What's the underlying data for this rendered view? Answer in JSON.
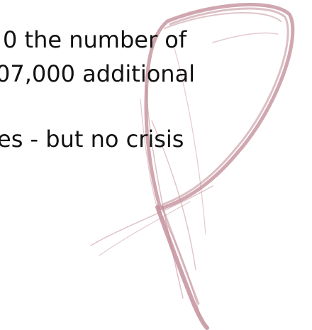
{
  "body": {
    "lines": [
      "0 the number of",
      "07,000 additional",
      "es - but no crisis"
    ]
  },
  "colors": {
    "text": "#111111",
    "watermark": "#c08a96"
  },
  "watermark": {
    "icon": "pen-stroke-logo-icon"
  }
}
